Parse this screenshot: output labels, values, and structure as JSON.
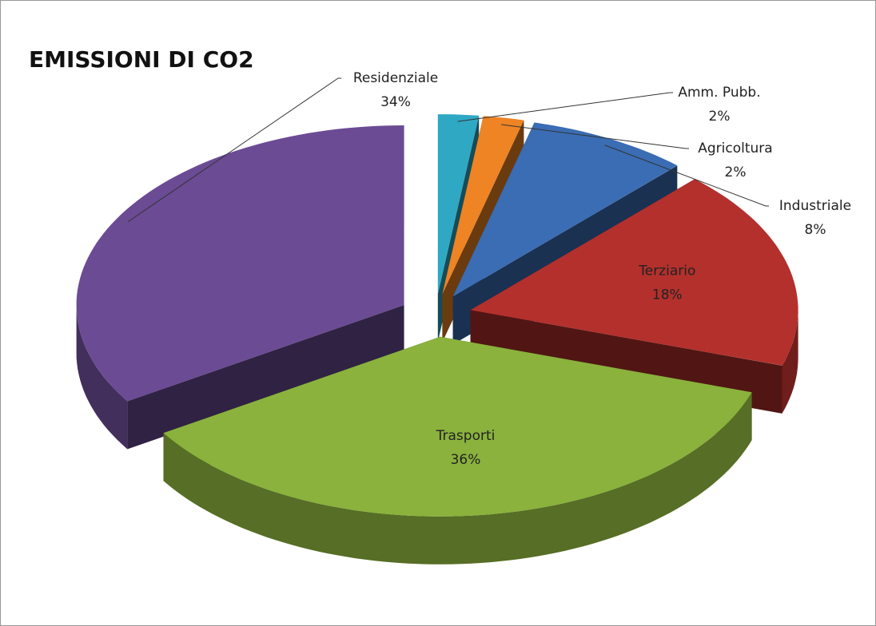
{
  "chart_data": {
    "type": "pie3d",
    "title": "EMISSIONI DI CO2",
    "categories": [
      "Amm. Pubb.",
      "Agricoltura",
      "Industriale",
      "Terziario",
      "Trasporti",
      "Residenziale"
    ],
    "values": [
      2,
      2,
      8,
      18,
      36,
      34
    ],
    "value_labels": [
      "2%",
      "2%",
      "8%",
      "18%",
      "36%",
      "34%"
    ],
    "colors": [
      "#2fa8c4",
      "#ee8424",
      "#3a6db3",
      "#b3302d",
      "#8ab23c",
      "#6b4b94"
    ]
  }
}
